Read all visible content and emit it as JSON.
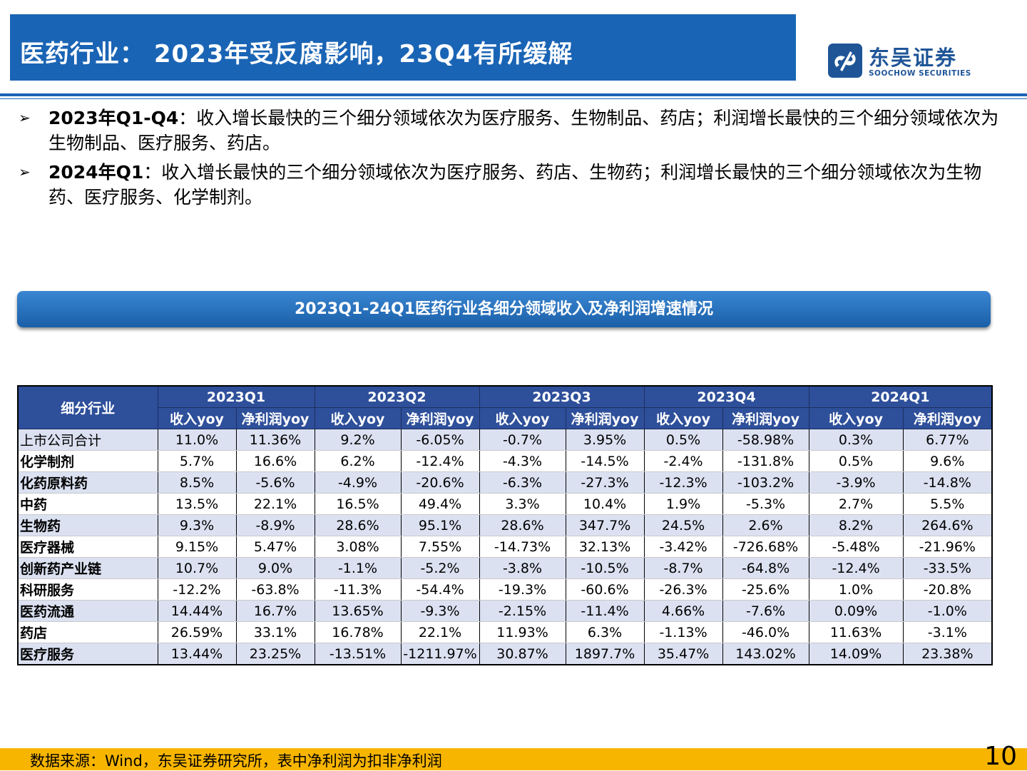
{
  "title": "医药行业： 2023年受反腐影响，23Q4有所缓解",
  "logo": {
    "name_cn": "东吴证券",
    "name_en": "SOOCHOW SECURITIES"
  },
  "bullets": [
    {
      "lead": "2023年Q1-Q4",
      "text": "：收入增长最快的三个细分领域依次为医疗服务、生物制品、药店；利润增长最快的三个细分领域依次为生物制品、医疗服务、药店。"
    },
    {
      "lead": "2024年Q1",
      "text": "：收入增长最快的三个细分领域依次为医疗服务、药店、生物药；利润增长最快的三个细分领域依次为生物药、医疗服务、化学制剂。"
    }
  ],
  "banner": "2023Q1-24Q1医药行业各细分领域收入及净利润增速情况",
  "table": {
    "corner": "细分行业",
    "periods": [
      "2023Q1",
      "2023Q2",
      "2023Q3",
      "2023Q4",
      "2024Q1"
    ],
    "sub_headers": [
      "收入yoy",
      "净利润yoy",
      "收入yoy",
      "净利润yoy",
      "收入yoy",
      "净利润yoy",
      "收入yoy",
      "净利润yoy",
      "收入yoy",
      "净利润yoy"
    ],
    "rows": [
      {
        "name": "上市公司合计",
        "values": [
          "11.0%",
          "11.36%",
          "9.2%",
          "-6.05%",
          "-0.7%",
          "3.95%",
          "0.5%",
          "-58.98%",
          "0.3%",
          "6.77%"
        ]
      },
      {
        "name": "化学制剂",
        "values": [
          "5.7%",
          "16.6%",
          "6.2%",
          "-12.4%",
          "-4.3%",
          "-14.5%",
          "-2.4%",
          "-131.8%",
          "0.5%",
          "9.6%"
        ]
      },
      {
        "name": "化药原料药",
        "values": [
          "8.5%",
          "-5.6%",
          "-4.9%",
          "-20.6%",
          "-6.3%",
          "-27.3%",
          "-12.3%",
          "-103.2%",
          "-3.9%",
          "-14.8%"
        ]
      },
      {
        "name": "中药",
        "values": [
          "13.5%",
          "22.1%",
          "16.5%",
          "49.4%",
          "3.3%",
          "10.4%",
          "1.9%",
          "-5.3%",
          "2.7%",
          "5.5%"
        ]
      },
      {
        "name": "生物药",
        "values": [
          "9.3%",
          "-8.9%",
          "28.6%",
          "95.1%",
          "28.6%",
          "347.7%",
          "24.5%",
          "2.6%",
          "8.2%",
          "264.6%"
        ]
      },
      {
        "name": "医疗器械",
        "values": [
          "9.15%",
          "5.47%",
          "3.08%",
          "7.55%",
          "-14.73%",
          "32.13%",
          "-3.42%",
          "-726.68%",
          "-5.48%",
          "-21.96%"
        ]
      },
      {
        "name": "创新药产业链",
        "values": [
          "10.7%",
          "9.0%",
          "-1.1%",
          "-5.2%",
          "-3.8%",
          "-10.5%",
          "-8.7%",
          "-64.8%",
          "-12.4%",
          "-33.5%"
        ]
      },
      {
        "name": "科研服务",
        "values": [
          "-12.2%",
          "-63.8%",
          "-11.3%",
          "-54.4%",
          "-19.3%",
          "-60.6%",
          "-26.3%",
          "-25.6%",
          "1.0%",
          "-20.8%"
        ]
      },
      {
        "name": "医药流通",
        "values": [
          "14.44%",
          "16.7%",
          "13.65%",
          "-9.3%",
          "-2.15%",
          "-11.4%",
          "4.66%",
          "-7.6%",
          "0.09%",
          "-1.0%"
        ]
      },
      {
        "name": "药店",
        "values": [
          "26.59%",
          "33.1%",
          "16.78%",
          "22.1%",
          "11.93%",
          "6.3%",
          "-1.13%",
          "-46.0%",
          "11.63%",
          "-3.1%"
        ]
      },
      {
        "name": "医疗服务",
        "values": [
          "13.44%",
          "23.25%",
          "-13.51%",
          "-1211.97%",
          "30.87%",
          "1897.7%",
          "35.47%",
          "143.02%",
          "14.09%",
          "23.38%"
        ]
      }
    ]
  },
  "footer": {
    "source_note": "数据来源：Wind，东吴证券研究所，表中净利润为扣非净利润",
    "page_number": "10"
  },
  "colors": {
    "title_bar": "#1a64b5",
    "table_header": "#2e4f9a",
    "row_alt": "#dbe1f1",
    "footer_bar": "#f7b500"
  }
}
